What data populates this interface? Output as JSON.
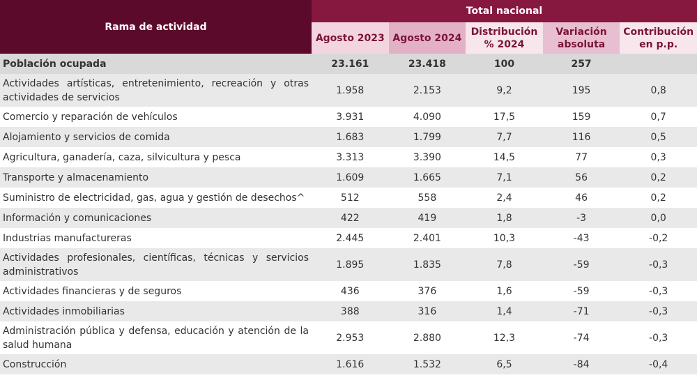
{
  "header": {
    "row_label": "Rama de actividad",
    "group": "Total nacional",
    "columns": [
      "Agosto 2023",
      "Agosto 2024",
      "Distribución % 2024",
      "Variación absoluta",
      "Contribución en p.p."
    ]
  },
  "total": {
    "label": "Población ocupada",
    "cells": [
      "23.161",
      "23.418",
      "100",
      "257"
    ]
  },
  "rows": [
    {
      "label": "Actividades artísticas, entretenimiento, recreación y otras actividades de servicios",
      "cells": [
        "1.958",
        "2.153",
        "9,2",
        "195",
        "0,8"
      ]
    },
    {
      "label": "Comercio y reparación de vehículos",
      "cells": [
        "3.931",
        "4.090",
        "17,5",
        "159",
        "0,7"
      ]
    },
    {
      "label": "Alojamiento y servicios de comida",
      "cells": [
        "1.683",
        "1.799",
        "7,7",
        "116",
        "0,5"
      ]
    },
    {
      "label": "Agricultura, ganadería, caza, silvicultura y pesca",
      "cells": [
        "3.313",
        "3.390",
        "14,5",
        "77",
        "0,3"
      ]
    },
    {
      "label": "Transporte y almacenamiento",
      "cells": [
        "1.609",
        "1.665",
        "7,1",
        "56",
        "0,2"
      ]
    },
    {
      "label": "Suministro de electricidad, gas, agua y gestión de desechos^",
      "cells": [
        "512",
        "558",
        "2,4",
        "46",
        "0,2"
      ]
    },
    {
      "label": "Información y comunicaciones",
      "cells": [
        "422",
        "419",
        "1,8",
        "-3",
        "0,0"
      ]
    },
    {
      "label": "Industrias manufactureras",
      "cells": [
        "2.445",
        "2.401",
        "10,3",
        "-43",
        "-0,2"
      ]
    },
    {
      "label": "Actividades profesionales, científicas, técnicas y servicios administrativos",
      "cells": [
        "1.895",
        "1.835",
        "7,8",
        "-59",
        "-0,3"
      ]
    },
    {
      "label": "Actividades financieras y de seguros",
      "cells": [
        "436",
        "376",
        "1,6",
        "-59",
        "-0,3"
      ]
    },
    {
      "label": "Actividades inmobiliarias",
      "cells": [
        "388",
        "316",
        "1,4",
        "-71",
        "-0,3"
      ]
    },
    {
      "label": "Administración pública y defensa, educación y atención de la salud humana",
      "cells": [
        "2.953",
        "2.880",
        "12,3",
        "-74",
        "-0,3"
      ]
    },
    {
      "label": "Construcción",
      "cells": [
        "1.616",
        "1.532",
        "6,5",
        "-84",
        "-0,4"
      ]
    }
  ]
}
